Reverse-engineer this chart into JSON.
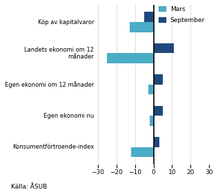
{
  "categories": [
    "Köp av kapitalvaror",
    "Landets ekonomi om 12\nmånader",
    "Egen ekonomi om 12 månader",
    "Egen ekonomi nu",
    "Konsumentförtroende-index"
  ],
  "mars_values": [
    -13,
    -25,
    -3,
    -2,
    -12
  ],
  "september_values": [
    -5,
    11,
    5,
    5,
    3
  ],
  "mars_color": "#4BACC6",
  "september_color": "#1F497D",
  "xlim": [
    -30,
    30
  ],
  "xticks": [
    -30,
    -20,
    -10,
    0,
    10,
    20,
    30
  ],
  "legend_mars": "Mars",
  "legend_september": "September",
  "source_text": "Källa: ÅSUB",
  "bar_height": 0.32
}
